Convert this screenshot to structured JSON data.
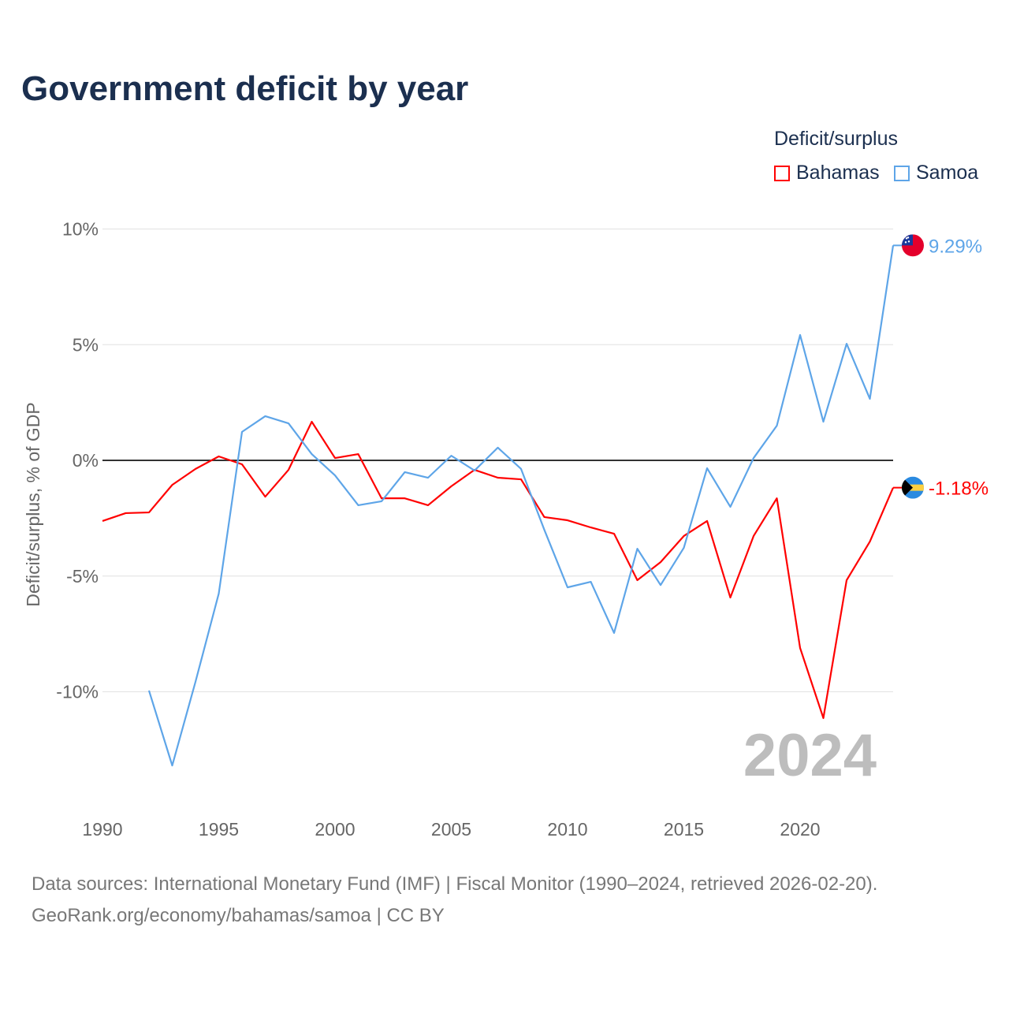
{
  "title": "Government deficit by year",
  "legend_title": "Deficit/surplus",
  "source_line1": "Data sources: International Monetary Fund (IMF) | Fiscal Monitor (1990–2024, retrieved 2026-02-20).",
  "source_line2": "GeoRank.org/economy/bahamas/samoa | CC BY",
  "chart_data": {
    "type": "line",
    "title": "Government deficit by year",
    "xlabel": "",
    "ylabel": "Deficit/surplus, % of GDP",
    "xlim": [
      1990,
      2024
    ],
    "ylim": [
      -14,
      11
    ],
    "x_ticks": [
      1990,
      1995,
      2000,
      2005,
      2010,
      2015,
      2020
    ],
    "x_tick_labels": [
      "1990",
      "1995",
      "2000",
      "2005",
      "2010",
      "2015",
      "2020"
    ],
    "y_ticks": [
      10,
      5,
      0,
      -5,
      -10
    ],
    "y_tick_labels": [
      "10%",
      "5%",
      "0%",
      "-5%",
      "-10%"
    ],
    "year_watermark": "2024",
    "legend_placement": "top-right",
    "series": [
      {
        "name": "Bahamas",
        "color": "#ff0000",
        "end_label": "-1.18%",
        "x": [
          1990,
          1991,
          1992,
          1993,
          1994,
          1995,
          1996,
          1997,
          1998,
          1999,
          2000,
          2001,
          2002,
          2003,
          2004,
          2005,
          2006,
          2007,
          2008,
          2009,
          2010,
          2011,
          2012,
          2013,
          2014,
          2015,
          2016,
          2017,
          2018,
          2019,
          2020,
          2021,
          2022,
          2023,
          2024
        ],
        "values": [
          -2.62,
          -2.28,
          -2.25,
          -1.06,
          -0.37,
          0.17,
          -0.17,
          -1.57,
          -0.41,
          1.67,
          0.1,
          0.27,
          -1.64,
          -1.64,
          -1.94,
          -1.12,
          -0.41,
          -0.75,
          -0.82,
          -2.45,
          -2.59,
          -2.9,
          -3.17,
          -5.18,
          -4.4,
          -3.27,
          -2.62,
          -5.93,
          -3.27,
          -1.64,
          -8.11,
          -11.14,
          -5.18,
          -3.51,
          -1.18
        ]
      },
      {
        "name": "Samoa",
        "color": "#5ea5e8",
        "end_label": "9.29%",
        "x": [
          1992,
          1993,
          1994,
          1995,
          1996,
          1997,
          1998,
          1999,
          2000,
          2001,
          2002,
          2003,
          2004,
          2005,
          2006,
          2007,
          2008,
          2009,
          2010,
          2011,
          2012,
          2013,
          2014,
          2015,
          2016,
          2017,
          2018,
          2019,
          2020,
          2021,
          2022,
          2023,
          2024
        ],
        "values": [
          -9.95,
          -13.19,
          -9.57,
          -5.76,
          1.23,
          1.91,
          1.6,
          0.27,
          -0.65,
          -1.94,
          -1.77,
          -0.51,
          -0.75,
          0.2,
          -0.44,
          0.55,
          -0.37,
          -3.0,
          -5.49,
          -5.25,
          -7.46,
          -3.82,
          -5.39,
          -3.78,
          -0.34,
          -2.01,
          0.1,
          1.5,
          5.42,
          1.67,
          5.04,
          2.66,
          9.29
        ]
      }
    ]
  }
}
